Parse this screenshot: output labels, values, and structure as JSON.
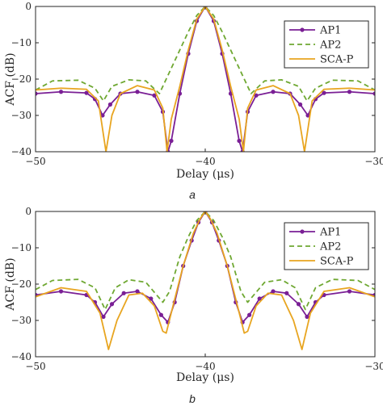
{
  "chart_data": [
    {
      "panel": "a",
      "type": "line",
      "caption": "a",
      "xlabel": "Delay (μs)",
      "ylabel": "ACF (dB)",
      "xlim": [
        -50,
        -30
      ],
      "ylim": [
        -40,
        0
      ],
      "xticks": [
        -50,
        -40,
        -30
      ],
      "yticks": [
        0,
        -10,
        -20,
        -30,
        -40
      ],
      "grid": false,
      "legend_position": "top-right",
      "series": [
        {
          "name": "AP1",
          "color": "#7a1f95",
          "style": "solid-dots",
          "points": [
            [
              -50,
              -24
            ],
            [
              -48.5,
              -23.5
            ],
            [
              -47,
              -23.8
            ],
            [
              -46.5,
              -25.5
            ],
            [
              -46.05,
              -30
            ],
            [
              -45.6,
              -27
            ],
            [
              -45,
              -24
            ],
            [
              -44,
              -23.5
            ],
            [
              -43,
              -24.5
            ],
            [
              -42.5,
              -29
            ],
            [
              -42.2,
              -40
            ],
            [
              -42,
              -37
            ],
            [
              -41.5,
              -24
            ],
            [
              -41,
              -13
            ],
            [
              -40.5,
              -4
            ],
            [
              -40,
              0
            ],
            [
              -39.5,
              -4
            ],
            [
              -39,
              -13
            ],
            [
              -38.5,
              -24
            ],
            [
              -38,
              -37
            ],
            [
              -37.8,
              -40
            ],
            [
              -37.5,
              -29
            ],
            [
              -37,
              -24.5
            ],
            [
              -36,
              -23.5
            ],
            [
              -35,
              -24
            ],
            [
              -34.4,
              -27
            ],
            [
              -33.95,
              -30
            ],
            [
              -33.5,
              -25.5
            ],
            [
              -33,
              -23.8
            ],
            [
              -31.5,
              -23.5
            ],
            [
              -30,
              -24
            ]
          ]
        },
        {
          "name": "AP2",
          "color": "#6fa832",
          "style": "dashed",
          "points": [
            [
              -50,
              -23
            ],
            [
              -49,
              -20.5
            ],
            [
              -47.5,
              -20.3
            ],
            [
              -46.5,
              -22.5
            ],
            [
              -46,
              -26
            ],
            [
              -45.5,
              -22
            ],
            [
              -44.5,
              -20.2
            ],
            [
              -43.5,
              -20.5
            ],
            [
              -42.7,
              -24
            ],
            [
              -42.3,
              -20
            ],
            [
              -41.5,
              -12
            ],
            [
              -41,
              -7
            ],
            [
              -40.5,
              -2.5
            ],
            [
              -40,
              0
            ],
            [
              -39.5,
              -2.5
            ],
            [
              -39,
              -7
            ],
            [
              -38.5,
              -12
            ],
            [
              -37.7,
              -20
            ],
            [
              -37.3,
              -24
            ],
            [
              -36.5,
              -20.5
            ],
            [
              -35.5,
              -20.2
            ],
            [
              -34.5,
              -22
            ],
            [
              -34,
              -26
            ],
            [
              -33.5,
              -22.5
            ],
            [
              -32.5,
              -20.3
            ],
            [
              -31,
              -20.5
            ],
            [
              -30,
              -23
            ]
          ]
        },
        {
          "name": "SCA-P",
          "color": "#e8a520",
          "style": "solid",
          "points": [
            [
              -50,
              -23
            ],
            [
              -48.5,
              -22.5
            ],
            [
              -47,
              -22.8
            ],
            [
              -46.3,
              -26
            ],
            [
              -45.85,
              -40
            ],
            [
              -45.5,
              -30
            ],
            [
              -45,
              -24
            ],
            [
              -44,
              -21.8
            ],
            [
              -43,
              -23
            ],
            [
              -42.5,
              -28
            ],
            [
              -42.25,
              -40
            ],
            [
              -42,
              -31
            ],
            [
              -41.5,
              -22
            ],
            [
              -41,
              -12
            ],
            [
              -40.5,
              -3.5
            ],
            [
              -40,
              0
            ],
            [
              -39.5,
              -3.5
            ],
            [
              -39,
              -12
            ],
            [
              -38.5,
              -22
            ],
            [
              -38,
              -31
            ],
            [
              -37.75,
              -40
            ],
            [
              -37.5,
              -28
            ],
            [
              -37,
              -23
            ],
            [
              -36,
              -21.8
            ],
            [
              -35,
              -24
            ],
            [
              -34.5,
              -30
            ],
            [
              -34.15,
              -40
            ],
            [
              -33.7,
              -26
            ],
            [
              -33,
              -22.8
            ],
            [
              -31.5,
              -22.5
            ],
            [
              -30,
              -23
            ]
          ]
        }
      ]
    },
    {
      "panel": "b",
      "type": "line",
      "caption": "b",
      "xlabel": "Delay (μs)",
      "ylabel": "ACF (dB)",
      "xlim": [
        -50,
        -30
      ],
      "ylim": [
        -40,
        0
      ],
      "xticks": [
        -50,
        -40,
        -30
      ],
      "yticks": [
        0,
        -10,
        -20,
        -30,
        -40
      ],
      "grid": false,
      "legend_position": "top-right",
      "series": [
        {
          "name": "AP1",
          "color": "#7a1f95",
          "style": "solid-dots",
          "points": [
            [
              -50,
              -23
            ],
            [
              -48.5,
              -22
            ],
            [
              -47,
              -23
            ],
            [
              -46.5,
              -25
            ],
            [
              -46,
              -29
            ],
            [
              -45.5,
              -25.5
            ],
            [
              -44.8,
              -22.5
            ],
            [
              -44,
              -22
            ],
            [
              -43.2,
              -24
            ],
            [
              -42.6,
              -28.5
            ],
            [
              -42.2,
              -30.5
            ],
            [
              -41.8,
              -25
            ],
            [
              -41.3,
              -15
            ],
            [
              -40.8,
              -8
            ],
            [
              -40.4,
              -3
            ],
            [
              -40,
              0
            ],
            [
              -39.6,
              -3
            ],
            [
              -39.2,
              -8
            ],
            [
              -38.7,
              -15
            ],
            [
              -38.2,
              -25
            ],
            [
              -37.8,
              -30.5
            ],
            [
              -37.4,
              -28.5
            ],
            [
              -36.8,
              -24
            ],
            [
              -36,
              -22
            ],
            [
              -35.2,
              -22.5
            ],
            [
              -34.5,
              -25.5
            ],
            [
              -34,
              -29
            ],
            [
              -33.5,
              -25
            ],
            [
              -33,
              -23
            ],
            [
              -31.5,
              -22
            ],
            [
              -30,
              -23
            ]
          ]
        },
        {
          "name": "AP2",
          "color": "#6fa832",
          "style": "dashed",
          "points": [
            [
              -50,
              -21.5
            ],
            [
              -49,
              -19
            ],
            [
              -47.5,
              -18.7
            ],
            [
              -46.5,
              -21
            ],
            [
              -45.9,
              -27
            ],
            [
              -45.3,
              -21
            ],
            [
              -44.5,
              -18.8
            ],
            [
              -43.5,
              -19.5
            ],
            [
              -42.5,
              -25
            ],
            [
              -42.1,
              -22
            ],
            [
              -41.5,
              -12.5
            ],
            [
              -41,
              -7
            ],
            [
              -40.5,
              -2.5
            ],
            [
              -40,
              0
            ],
            [
              -39.5,
              -2.5
            ],
            [
              -39,
              -7
            ],
            [
              -38.5,
              -12.5
            ],
            [
              -37.9,
              -22
            ],
            [
              -37.5,
              -25
            ],
            [
              -36.5,
              -19.5
            ],
            [
              -35.5,
              -18.8
            ],
            [
              -34.7,
              -21
            ],
            [
              -34.1,
              -27
            ],
            [
              -33.5,
              -21
            ],
            [
              -32.5,
              -18.7
            ],
            [
              -31,
              -19
            ],
            [
              -30,
              -21.5
            ]
          ]
        },
        {
          "name": "SCA-P",
          "color": "#e8a520",
          "style": "solid",
          "points": [
            [
              -50,
              -23.5
            ],
            [
              -48.5,
              -21
            ],
            [
              -47,
              -22
            ],
            [
              -46.2,
              -28
            ],
            [
              -45.7,
              -38
            ],
            [
              -45.2,
              -30
            ],
            [
              -44.5,
              -23
            ],
            [
              -43.7,
              -22.5
            ],
            [
              -43,
              -26
            ],
            [
              -42.5,
              -33
            ],
            [
              -42.3,
              -33.5
            ],
            [
              -41.9,
              -26
            ],
            [
              -41.3,
              -15
            ],
            [
              -40.7,
              -6
            ],
            [
              -40.3,
              -2
            ],
            [
              -40,
              0
            ],
            [
              -39.7,
              -2
            ],
            [
              -39.3,
              -6
            ],
            [
              -38.7,
              -15
            ],
            [
              -38.1,
              -26
            ],
            [
              -37.7,
              -33.5
            ],
            [
              -37.5,
              -33
            ],
            [
              -37,
              -26
            ],
            [
              -36.3,
              -22.5
            ],
            [
              -35.5,
              -23
            ],
            [
              -34.8,
              -30
            ],
            [
              -34.3,
              -38
            ],
            [
              -33.8,
              -28
            ],
            [
              -33,
              -22
            ],
            [
              -31.5,
              -21
            ],
            [
              -30,
              -23.5
            ]
          ]
        }
      ]
    }
  ]
}
